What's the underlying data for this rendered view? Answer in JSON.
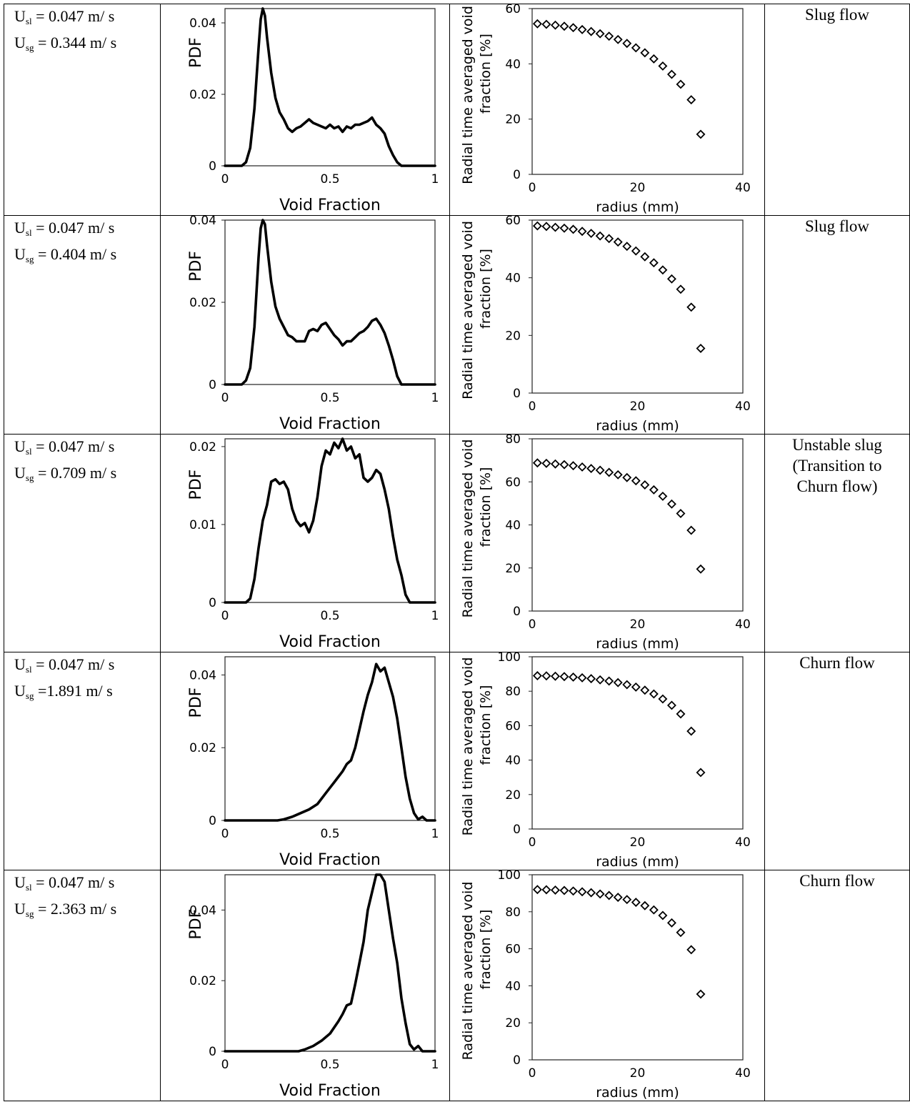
{
  "rows": [
    {
      "usl_prefix": "U",
      "usl_sub": "sl",
      "usl_rest": " = 0.047 m/ s",
      "usg_prefix": "U",
      "usg_sub": "sg",
      "usg_rest": " = 0.344 m/ s",
      "regime": [
        "Slug flow"
      ]
    },
    {
      "usl_prefix": "U",
      "usl_sub": "sl",
      "usl_rest": " = 0.047 m/ s",
      "usg_prefix": "U",
      "usg_sub": "sg",
      "usg_rest": " = 0.404 m/ s",
      "regime": [
        "Slug flow"
      ]
    },
    {
      "usl_prefix": "U",
      "usl_sub": "sl",
      "usl_rest": " = 0.047 m/ s",
      "usg_prefix": "U",
      "usg_sub": "sg",
      "usg_rest": " = 0.709 m/ s",
      "regime": [
        "Unstable slug",
        "(Transition to",
        "Churn flow)"
      ]
    },
    {
      "usl_prefix": "U",
      "usl_sub": "sl",
      "usl_rest": "  = 0.047 m/ s",
      "usg_prefix": "U",
      "usg_sub": "sg",
      "usg_rest": " =1.891 m/ s",
      "regime": [
        "Churn flow"
      ]
    },
    {
      "usl_prefix": "U",
      "usl_sub": "sl",
      "usl_rest": " = 0.047 m/ s",
      "usg_prefix": "U",
      "usg_sub": "sg",
      "usg_rest": " = 2.363 m/ s",
      "regime": [
        "Churn flow"
      ]
    }
  ],
  "chart_data": [
    {
      "type": "line",
      "chart": "pdf",
      "row": 1,
      "xlabel": "Void Fraction",
      "ylabel": "PDF",
      "xlim": [
        0,
        1
      ],
      "ylim": [
        0,
        0.044
      ],
      "xticks": [
        "0",
        "0.5",
        "1"
      ],
      "yticks": [
        "0",
        "0.02",
        "0.04"
      ],
      "x": [
        0,
        0.08,
        0.1,
        0.12,
        0.14,
        0.16,
        0.17,
        0.18,
        0.19,
        0.2,
        0.22,
        0.24,
        0.26,
        0.28,
        0.3,
        0.32,
        0.34,
        0.36,
        0.38,
        0.4,
        0.42,
        0.44,
        0.46,
        0.48,
        0.5,
        0.52,
        0.54,
        0.56,
        0.58,
        0.6,
        0.62,
        0.64,
        0.66,
        0.68,
        0.7,
        0.72,
        0.74,
        0.76,
        0.78,
        0.8,
        0.82,
        0.84,
        0.86,
        1
      ],
      "y": [
        0,
        0,
        0.001,
        0.005,
        0.016,
        0.033,
        0.041,
        0.044,
        0.042,
        0.036,
        0.026,
        0.019,
        0.015,
        0.013,
        0.0105,
        0.0095,
        0.0105,
        0.011,
        0.012,
        0.013,
        0.012,
        0.0115,
        0.011,
        0.0105,
        0.0115,
        0.0105,
        0.011,
        0.0095,
        0.011,
        0.0105,
        0.0115,
        0.0115,
        0.012,
        0.0125,
        0.0135,
        0.0115,
        0.0105,
        0.009,
        0.0055,
        0.003,
        0.001,
        0,
        0,
        0
      ]
    },
    {
      "type": "scatter",
      "chart": "radial",
      "row": 1,
      "xlabel": "radius (mm)",
      "ylabel": [
        "Radial time averaged void",
        "fraction [%]"
      ],
      "xlim": [
        0,
        40
      ],
      "ylim": [
        0,
        60
      ],
      "xticks": [
        "0",
        "20",
        "40"
      ],
      "yticks": [
        "0",
        "20",
        "40",
        "60"
      ],
      "x": [
        1,
        2.7,
        4.4,
        6.1,
        7.8,
        9.5,
        11.2,
        12.9,
        14.6,
        16.3,
        18,
        19.7,
        21.4,
        23.1,
        24.8,
        26.5,
        28.2,
        30.2,
        32
      ],
      "y": [
        54.5,
        54.3,
        54,
        53.6,
        53.1,
        52.4,
        51.7,
        50.9,
        50,
        48.8,
        47.4,
        45.8,
        44,
        41.8,
        39.2,
        36.2,
        32.6,
        27,
        14.5
      ]
    },
    {
      "type": "line",
      "chart": "pdf",
      "row": 2,
      "xlabel": "Void Fraction",
      "ylabel": "PDF",
      "xlim": [
        0,
        1
      ],
      "ylim": [
        0,
        0.04
      ],
      "xticks": [
        "0",
        "0.5",
        "1"
      ],
      "yticks": [
        "0",
        "0.02",
        "0.04"
      ],
      "x": [
        0,
        0.08,
        0.1,
        0.12,
        0.14,
        0.16,
        0.17,
        0.18,
        0.19,
        0.2,
        0.22,
        0.24,
        0.26,
        0.28,
        0.3,
        0.32,
        0.34,
        0.36,
        0.38,
        0.4,
        0.42,
        0.44,
        0.46,
        0.48,
        0.5,
        0.52,
        0.54,
        0.56,
        0.58,
        0.6,
        0.62,
        0.64,
        0.66,
        0.68,
        0.7,
        0.72,
        0.74,
        0.76,
        0.78,
        0.8,
        0.82,
        0.84,
        0.86,
        1
      ],
      "y": [
        0,
        0,
        0.001,
        0.004,
        0.014,
        0.031,
        0.038,
        0.04,
        0.039,
        0.034,
        0.025,
        0.019,
        0.016,
        0.014,
        0.012,
        0.0115,
        0.0105,
        0.0105,
        0.0105,
        0.013,
        0.0135,
        0.013,
        0.0145,
        0.015,
        0.0135,
        0.012,
        0.011,
        0.0095,
        0.0105,
        0.0105,
        0.0115,
        0.0125,
        0.013,
        0.014,
        0.0155,
        0.016,
        0.0145,
        0.0125,
        0.0095,
        0.006,
        0.002,
        0,
        0,
        0
      ]
    },
    {
      "type": "scatter",
      "chart": "radial",
      "row": 2,
      "xlabel": "radius (mm)",
      "ylabel": [
        "Radial time averaged void",
        "fraction [%]"
      ],
      "xlim": [
        0,
        40
      ],
      "ylim": [
        0,
        60
      ],
      "xticks": [
        "0",
        "20",
        "40"
      ],
      "yticks": [
        "0",
        "20",
        "40",
        "60"
      ],
      "x": [
        1,
        2.7,
        4.4,
        6.1,
        7.8,
        9.5,
        11.2,
        12.9,
        14.6,
        16.3,
        18,
        19.7,
        21.4,
        23.1,
        24.8,
        26.5,
        28.2,
        30.2,
        32
      ],
      "y": [
        58,
        57.8,
        57.5,
        57.2,
        56.8,
        56.1,
        55.4,
        54.5,
        53.6,
        52.4,
        50.9,
        49.3,
        47.3,
        45.2,
        42.7,
        39.6,
        36,
        29.8,
        15.5
      ]
    },
    {
      "type": "line",
      "chart": "pdf",
      "row": 3,
      "xlabel": "Void Fraction",
      "ylabel": "PDF",
      "xlim": [
        0,
        1
      ],
      "ylim": [
        0,
        0.021
      ],
      "xticks": [
        "0",
        "0.5",
        "1"
      ],
      "yticks": [
        "0",
        "0.01",
        "0.02"
      ],
      "x": [
        0,
        0.1,
        0.12,
        0.14,
        0.16,
        0.18,
        0.2,
        0.22,
        0.24,
        0.26,
        0.28,
        0.3,
        0.32,
        0.34,
        0.36,
        0.38,
        0.4,
        0.42,
        0.44,
        0.46,
        0.48,
        0.5,
        0.52,
        0.54,
        0.56,
        0.58,
        0.6,
        0.62,
        0.64,
        0.66,
        0.68,
        0.7,
        0.72,
        0.74,
        0.76,
        0.78,
        0.8,
        0.82,
        0.84,
        0.86,
        0.88,
        1
      ],
      "y": [
        0,
        0,
        0.0005,
        0.003,
        0.007,
        0.0105,
        0.0125,
        0.0155,
        0.0158,
        0.0152,
        0.0155,
        0.0145,
        0.012,
        0.0105,
        0.0098,
        0.0102,
        0.009,
        0.0105,
        0.0135,
        0.0175,
        0.0195,
        0.019,
        0.0205,
        0.0198,
        0.021,
        0.0195,
        0.02,
        0.0185,
        0.019,
        0.016,
        0.0155,
        0.016,
        0.017,
        0.0165,
        0.0145,
        0.012,
        0.0085,
        0.0055,
        0.0035,
        0.001,
        0,
        0
      ]
    },
    {
      "type": "scatter",
      "chart": "radial",
      "row": 3,
      "xlabel": "radius (mm)",
      "ylabel": [
        "Radial time averaged void",
        "fraction [%]"
      ],
      "xlim": [
        0,
        40
      ],
      "ylim": [
        0,
        80
      ],
      "xticks": [
        "0",
        "20",
        "40"
      ],
      "yticks": [
        "0",
        "20",
        "40",
        "60",
        "80"
      ],
      "x": [
        1,
        2.7,
        4.4,
        6.1,
        7.8,
        9.5,
        11.2,
        12.9,
        14.6,
        16.3,
        18,
        19.7,
        21.4,
        23.1,
        24.8,
        26.5,
        28.2,
        30.2,
        32
      ],
      "y": [
        68.8,
        68.6,
        68.3,
        68,
        67.5,
        66.9,
        66.2,
        65.4,
        64.4,
        63.3,
        62,
        60.5,
        58.6,
        56.3,
        53.3,
        49.7,
        45.3,
        37.5,
        19.5
      ]
    },
    {
      "type": "line",
      "chart": "pdf",
      "row": 4,
      "xlabel": "Void Fraction",
      "ylabel": "PDF",
      "xlim": [
        0,
        1
      ],
      "ylim": [
        0,
        0.045
      ],
      "xticks": [
        "0",
        "0.5",
        "1"
      ],
      "yticks": [
        "0",
        "0.02",
        "0.04"
      ],
      "x": [
        0,
        0.25,
        0.28,
        0.32,
        0.36,
        0.4,
        0.44,
        0.48,
        0.5,
        0.52,
        0.54,
        0.56,
        0.58,
        0.6,
        0.62,
        0.64,
        0.66,
        0.68,
        0.7,
        0.72,
        0.74,
        0.76,
        0.78,
        0.8,
        0.82,
        0.84,
        0.86,
        0.88,
        0.9,
        0.92,
        0.94,
        0.96,
        1
      ],
      "y": [
        0,
        0,
        0.0003,
        0.001,
        0.002,
        0.003,
        0.0045,
        0.0075,
        0.009,
        0.0105,
        0.012,
        0.0135,
        0.0155,
        0.0165,
        0.02,
        0.025,
        0.03,
        0.0345,
        0.038,
        0.043,
        0.041,
        0.042,
        0.038,
        0.034,
        0.028,
        0.02,
        0.012,
        0.006,
        0.002,
        0.0003,
        0.001,
        0,
        0
      ]
    },
    {
      "type": "scatter",
      "chart": "radial",
      "row": 4,
      "xlabel": "radius (mm)",
      "ylabel": [
        "Radial time averaged void",
        "fraction [%]"
      ],
      "xlim": [
        0,
        40
      ],
      "ylim": [
        0,
        100
      ],
      "xticks": [
        "0",
        "20",
        "40"
      ],
      "yticks": [
        "0",
        "20",
        "40",
        "60",
        "80",
        "100"
      ],
      "x": [
        1,
        2.7,
        4.4,
        6.1,
        7.8,
        9.5,
        11.2,
        12.9,
        14.6,
        16.3,
        18,
        19.7,
        21.4,
        23.1,
        24.8,
        26.5,
        28.2,
        30.2,
        32
      ],
      "y": [
        89,
        88.9,
        88.7,
        88.5,
        88.2,
        87.8,
        87.3,
        86.6,
        85.9,
        85,
        83.8,
        82.4,
        80.6,
        78.4,
        75.5,
        71.8,
        66.8,
        56.8,
        32.8
      ]
    },
    {
      "type": "line",
      "chart": "pdf",
      "row": 5,
      "xlabel": "Void Fraction",
      "ylabel": "PDF",
      "xlim": [
        0,
        1
      ],
      "ylim": [
        0,
        0.05
      ],
      "xticks": [
        "0",
        "0.5",
        "1"
      ],
      "yticks": [
        "0",
        "0.02",
        "0.04"
      ],
      "x": [
        0,
        0.35,
        0.38,
        0.42,
        0.46,
        0.5,
        0.54,
        0.56,
        0.58,
        0.6,
        0.62,
        0.64,
        0.66,
        0.68,
        0.7,
        0.72,
        0.74,
        0.76,
        0.78,
        0.8,
        0.82,
        0.84,
        0.86,
        0.88,
        0.9,
        0.92,
        0.94,
        0.96,
        1
      ],
      "y": [
        0,
        0,
        0.0005,
        0.0015,
        0.003,
        0.005,
        0.0085,
        0.0105,
        0.013,
        0.0135,
        0.019,
        0.025,
        0.031,
        0.04,
        0.045,
        0.05,
        0.05,
        0.048,
        0.04,
        0.032,
        0.025,
        0.015,
        0.008,
        0.002,
        0.0005,
        0.0015,
        0,
        0,
        0
      ]
    },
    {
      "type": "scatter",
      "chart": "radial",
      "row": 5,
      "xlabel": "radius (mm)",
      "ylabel": [
        "Radial time averaged void",
        "fraction [%]"
      ],
      "xlim": [
        0,
        40
      ],
      "ylim": [
        0,
        100
      ],
      "xticks": [
        "0",
        "20",
        "40"
      ],
      "yticks": [
        "0",
        "20",
        "40",
        "60",
        "80",
        "100"
      ],
      "x": [
        1,
        2.7,
        4.4,
        6.1,
        7.8,
        9.5,
        11.2,
        12.9,
        14.6,
        16.3,
        18,
        19.7,
        21.4,
        23.1,
        24.8,
        26.5,
        28.2,
        30.2,
        32
      ],
      "y": [
        92,
        91.9,
        91.7,
        91.5,
        91.2,
        90.8,
        90.3,
        89.6,
        88.8,
        87.8,
        86.6,
        85.1,
        83.3,
        81,
        78,
        74,
        68.8,
        59.5,
        35.5
      ]
    }
  ]
}
